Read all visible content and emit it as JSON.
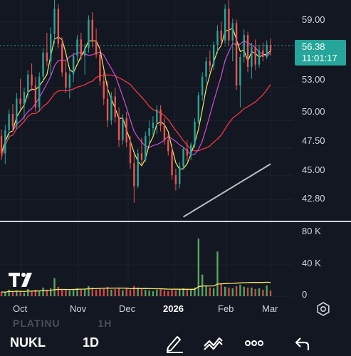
{
  "header": {
    "ghost_text": "PLATINU",
    "ghost_interval": "1H"
  },
  "price_axis": {
    "labels": [
      "59.00",
      "56.38",
      "53.00",
      "50.00",
      "47.50",
      "45.00",
      "42.80"
    ]
  },
  "current_price": {
    "price": "56.38",
    "countdown": "11:01:17",
    "color": "#26a69a"
  },
  "volume_axis": {
    "labels": [
      "80 K",
      "40 K",
      "0"
    ]
  },
  "time_axis": {
    "labels": [
      "Oct",
      "Nov",
      "Dec",
      "2026",
      "Feb",
      "Mar"
    ]
  },
  "toolbar": {
    "symbol": "NUKL",
    "interval": "1D",
    "icons": [
      "draw-pen-icon",
      "pattern-icon",
      "more-icon",
      "undo-icon"
    ]
  },
  "colors": {
    "up": "#26a69a",
    "down": "#ef5350",
    "ma_fast": "#f5e663",
    "ma_mid": "#d04ed6",
    "ma_slow": "#f23645",
    "ma_long": "#bdbdbd",
    "volume_ma": "#f5e663",
    "vol_up": "#66bb6a",
    "vol_down": "#ef5350"
  },
  "chart_data": {
    "type": "candlestick",
    "ylim": [
      41.5,
      61.0
    ],
    "ohlc": [
      [
        48.6,
        49.2,
        46.4,
        47.0
      ],
      [
        47.0,
        49.6,
        46.0,
        49.1
      ],
      [
        49.1,
        51.0,
        48.3,
        50.6
      ],
      [
        50.6,
        51.5,
        49.0,
        49.5
      ],
      [
        49.5,
        52.5,
        49.2,
        52.0
      ],
      [
        52.0,
        53.8,
        51.0,
        51.5
      ],
      [
        51.5,
        53.0,
        50.1,
        52.6
      ],
      [
        52.6,
        54.6,
        52.0,
        54.2
      ],
      [
        54.2,
        55.2,
        52.7,
        53.2
      ],
      [
        53.2,
        54.0,
        50.8,
        51.2
      ],
      [
        51.2,
        54.4,
        50.8,
        54.0
      ],
      [
        54.0,
        56.6,
        53.5,
        56.2
      ],
      [
        56.2,
        58.0,
        55.0,
        55.4
      ],
      [
        55.4,
        58.5,
        54.0,
        57.9
      ],
      [
        57.9,
        61.0,
        57.0,
        60.2
      ],
      [
        60.2,
        60.6,
        56.6,
        57.0
      ],
      [
        57.0,
        57.6,
        54.0,
        54.4
      ],
      [
        54.4,
        55.4,
        52.5,
        53.0
      ],
      [
        53.0,
        54.6,
        52.0,
        54.2
      ],
      [
        54.2,
        56.2,
        53.5,
        55.9
      ],
      [
        55.9,
        57.8,
        55.4,
        57.4
      ],
      [
        57.4,
        58.0,
        55.5,
        55.9
      ],
      [
        55.9,
        57.0,
        54.2,
        56.6
      ],
      [
        56.6,
        59.6,
        56.2,
        59.2
      ],
      [
        59.2,
        59.9,
        56.7,
        57.3
      ],
      [
        57.3,
        58.4,
        55.7,
        56.0
      ],
      [
        56.0,
        56.6,
        53.2,
        53.6
      ],
      [
        53.6,
        54.6,
        51.4,
        52.0
      ],
      [
        52.0,
        53.6,
        49.4,
        50.0
      ],
      [
        50.0,
        52.6,
        49.6,
        52.2
      ],
      [
        52.2,
        53.0,
        49.8,
        50.3
      ],
      [
        50.3,
        51.2,
        47.6,
        48.2
      ],
      [
        48.2,
        50.6,
        47.8,
        50.2
      ],
      [
        50.2,
        50.8,
        47.6,
        48.0
      ],
      [
        48.0,
        48.6,
        45.6,
        46.1
      ],
      [
        46.1,
        47.0,
        42.5,
        44.0
      ],
      [
        44.0,
        47.4,
        43.8,
        47.0
      ],
      [
        47.0,
        48.4,
        46.0,
        46.4
      ],
      [
        46.4,
        49.0,
        46.2,
        48.6
      ],
      [
        48.6,
        50.0,
        47.8,
        49.3
      ],
      [
        49.3,
        50.4,
        48.6,
        49.8
      ],
      [
        49.8,
        51.4,
        48.8,
        51.0
      ],
      [
        51.0,
        51.4,
        49.0,
        49.5
      ],
      [
        49.5,
        50.2,
        47.8,
        48.2
      ],
      [
        48.2,
        48.8,
        46.8,
        47.2
      ],
      [
        47.2,
        47.8,
        44.6,
        45.0
      ],
      [
        45.0,
        45.6,
        43.6,
        44.2
      ],
      [
        44.2,
        46.2,
        43.8,
        45.8
      ],
      [
        45.8,
        47.6,
        45.5,
        47.4
      ],
      [
        47.4,
        48.2,
        46.3,
        46.8
      ],
      [
        46.8,
        48.0,
        46.4,
        47.8
      ],
      [
        47.8,
        50.2,
        47.5,
        49.9
      ],
      [
        49.9,
        52.6,
        49.7,
        52.3
      ],
      [
        52.3,
        54.4,
        51.8,
        54.0
      ],
      [
        54.0,
        55.8,
        53.4,
        55.4
      ],
      [
        55.4,
        56.4,
        54.4,
        55.0
      ],
      [
        55.0,
        57.2,
        54.6,
        56.9
      ],
      [
        56.9,
        58.7,
        56.1,
        58.2
      ],
      [
        58.2,
        59.0,
        56.8,
        57.3
      ],
      [
        57.3,
        60.6,
        57.0,
        60.2
      ],
      [
        60.2,
        61.0,
        56.8,
        57.3
      ],
      [
        57.3,
        59.3,
        55.4,
        58.9
      ],
      [
        58.9,
        59.2,
        52.8,
        53.2
      ],
      [
        53.2,
        56.1,
        51.2,
        55.8
      ],
      [
        55.8,
        58.3,
        55.3,
        57.8
      ],
      [
        57.8,
        58.1,
        54.4,
        54.9
      ],
      [
        54.9,
        57.1,
        53.8,
        56.7
      ],
      [
        56.7,
        57.4,
        54.6,
        55.1
      ],
      [
        55.1,
        56.9,
        54.8,
        56.4
      ],
      [
        56.4,
        57.1,
        55.4,
        55.8
      ],
      [
        55.8,
        57.3,
        55.6,
        56.9
      ],
      [
        56.9,
        57.5,
        55.9,
        56.38
      ]
    ],
    "volume": [
      6,
      5,
      9,
      6,
      8,
      7,
      5,
      10,
      7,
      9,
      8,
      12,
      9,
      11,
      25,
      13,
      10,
      9,
      8,
      10,
      11,
      9,
      10,
      14,
      12,
      9,
      11,
      10,
      13,
      9,
      10,
      12,
      8,
      11,
      9,
      14,
      12,
      10,
      9,
      8,
      7,
      9,
      10,
      8,
      7,
      9,
      8,
      10,
      11,
      10,
      9,
      12,
      80,
      30,
      14,
      12,
      11,
      62,
      18,
      13,
      12,
      11,
      14,
      16,
      13,
      12,
      12,
      10,
      11,
      9,
      15,
      8
    ],
    "volume_ylim": [
      0,
      90
    ]
  }
}
